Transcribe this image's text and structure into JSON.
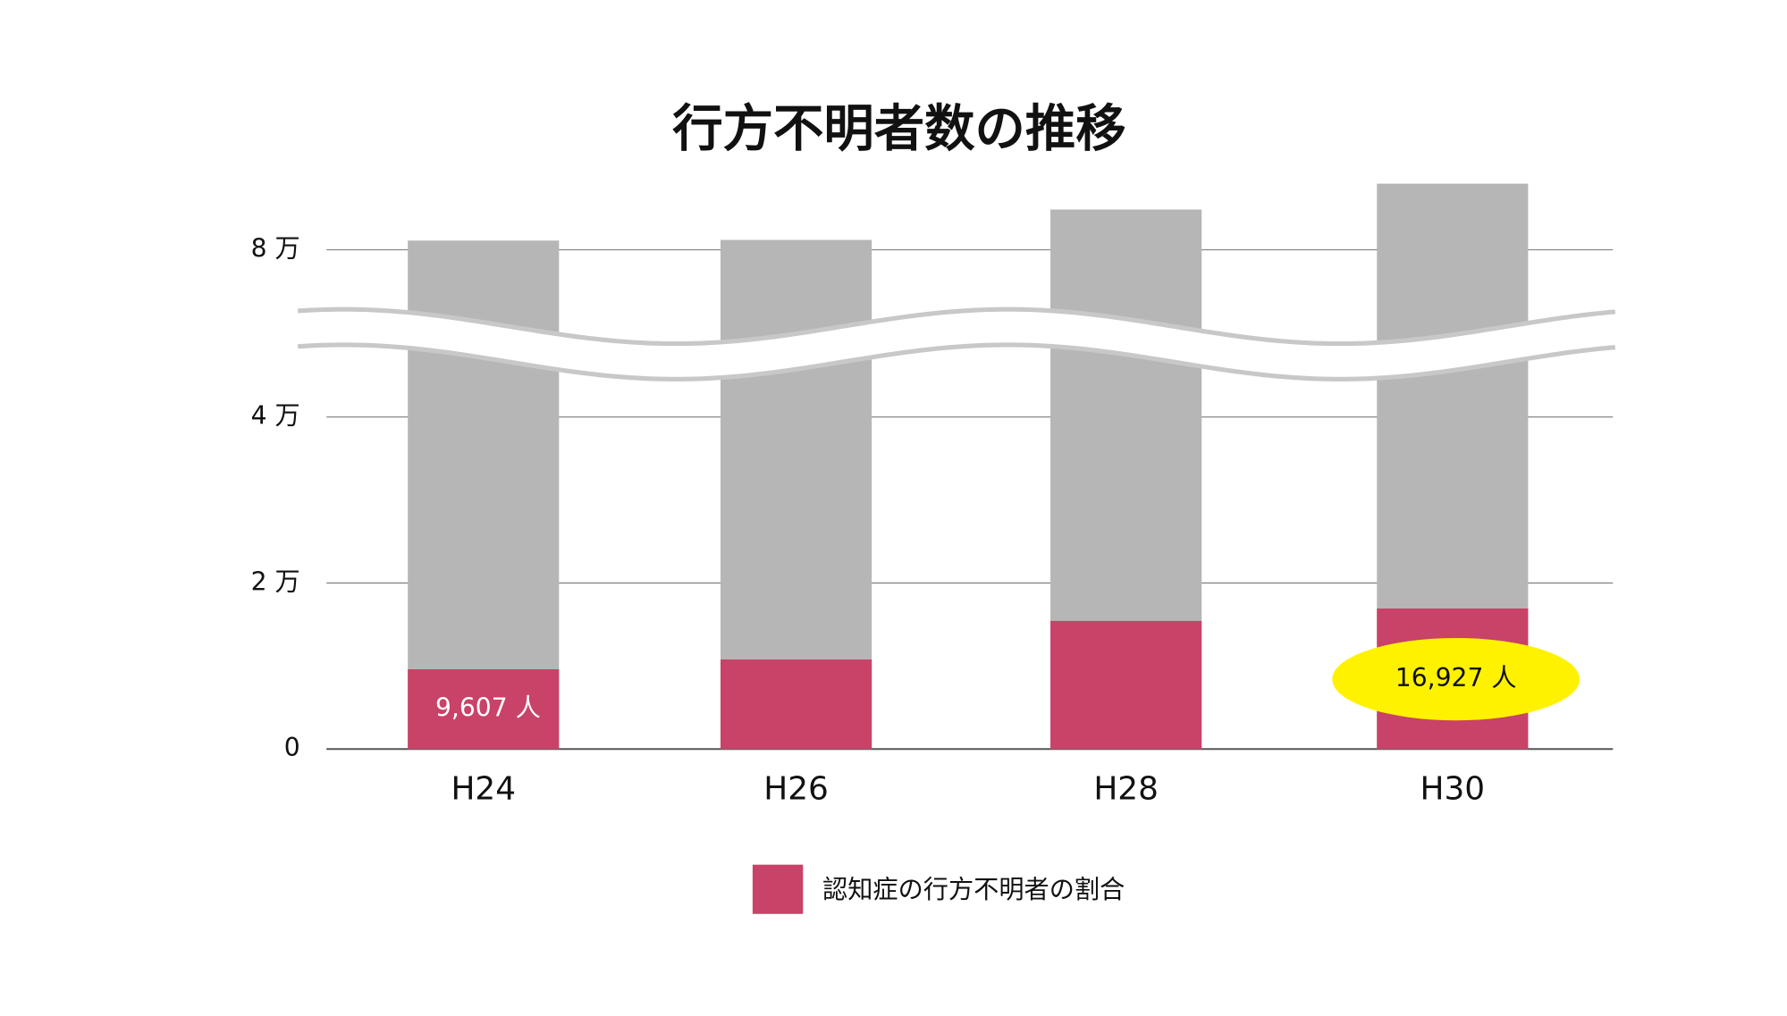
{
  "chart_data": {
    "type": "bar",
    "title": "行方不明者数の推移",
    "categories": [
      "H24",
      "H26",
      "H28",
      "H30"
    ],
    "series": [
      {
        "color": "#b5b6b5",
        "values": [
          81111,
          81193,
          84850,
          87962
        ]
      },
      {
        "name": "認知症の行方不明者の割合",
        "color": "#c94267",
        "values": [
          9607,
          10783,
          15432,
          16927
        ],
        "value_labels": [
          "9,607 人",
          null,
          null,
          "16,927 人"
        ]
      }
    ],
    "ylim": [
      0,
      90000
    ],
    "yticks": [
      0,
      {
        "value": 20000,
        "label": "2 万"
      },
      {
        "value": 40000,
        "label": "4 万"
      },
      {
        "value": 80000,
        "label": "8 万"
      }
    ],
    "grid": true,
    "axis_break": true,
    "highlight_color": "#fff200"
  }
}
